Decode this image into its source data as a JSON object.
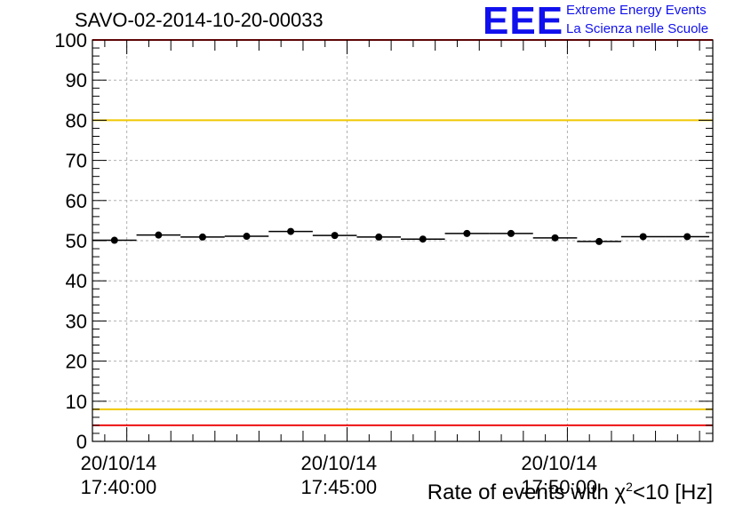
{
  "header": {
    "run_title": "SAVO-02-2014-10-20-00033",
    "logo_text": "EEE",
    "logo_line1": "Extreme Energy Events",
    "logo_line2": "La Scienza nelle Scuole"
  },
  "chart_data": {
    "type": "scatter",
    "title": "SAVO-02-2014-10-20-00033",
    "xlabel_prefix": "Rate of events with χ",
    "xlabel_sup": "2",
    "xlabel_suffix": "<10 [Hz]",
    "ylabel": "",
    "ylim": [
      0,
      100
    ],
    "yticks": [
      "0",
      "10",
      "20",
      "30",
      "40",
      "50",
      "60",
      "70",
      "80",
      "90",
      "100"
    ],
    "xticks": [
      {
        "date": "20/10/14",
        "time": "17:40:00",
        "minute": 0
      },
      {
        "date": "20/10/14",
        "time": "17:45:00",
        "minute": 5
      },
      {
        "date": "20/10/14",
        "time": "17:50:00",
        "minute": 10
      }
    ],
    "xlim_minutes": [
      -0.78,
      13.3
    ],
    "bin_width_minutes": 1.0,
    "x_minutes": [
      -0.28,
      0.72,
      1.72,
      2.72,
      3.72,
      4.72,
      5.72,
      6.72,
      7.72,
      8.72,
      9.72,
      10.72,
      11.72,
      12.72
    ],
    "values": [
      50.1,
      51.4,
      50.9,
      51.1,
      52.3,
      51.3,
      50.9,
      50.4,
      51.8,
      51.8,
      50.7,
      49.8,
      51.0,
      51.0
    ],
    "reference_lines": [
      {
        "name": "upper-red-line",
        "y": 100,
        "color": "#ee1111"
      },
      {
        "name": "upper-yellow-line",
        "y": 80,
        "color": "#f0c800"
      },
      {
        "name": "lower-yellow-line",
        "y": 8,
        "color": "#f0c800"
      },
      {
        "name": "lower-red-line",
        "y": 4,
        "color": "#ee1111"
      }
    ],
    "grid": true,
    "marker_color": "#000000"
  }
}
